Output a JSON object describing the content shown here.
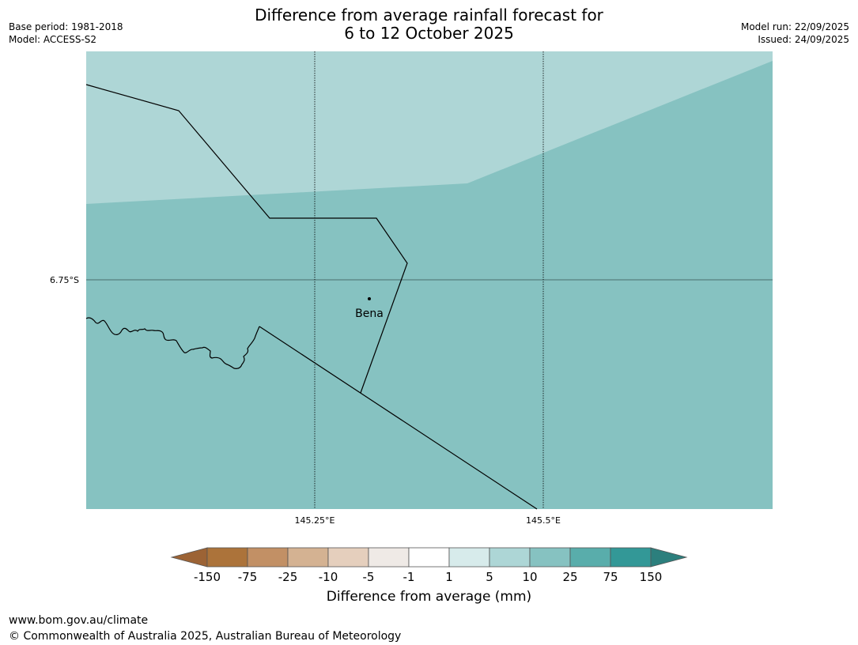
{
  "title": {
    "line1": "Difference from average rainfall forecast for",
    "line2": "6 to 12 October 2025"
  },
  "meta": {
    "base_period": "Base period: 1981-2018",
    "model": "Model: ACCESS-S2",
    "model_run": "Model run: 22/09/2025",
    "issued": "Issued: 24/09/2025"
  },
  "map": {
    "latitude_label": "6.75°S",
    "longitude_labels": [
      "145.25°E",
      "145.5°E"
    ],
    "place": {
      "name": "Bena"
    },
    "colors": {
      "light_zone": "#aed6d6",
      "main_zone": "#86c2c1",
      "grid": "#000000",
      "boundary": "#000000"
    }
  },
  "colorbar": {
    "title": "Difference from average (mm)",
    "tick_labels": [
      "-150",
      "-75",
      "-25",
      "-10",
      "-5",
      "-1",
      "1",
      "5",
      "10",
      "25",
      "75",
      "150"
    ],
    "colors": [
      "#ac733a",
      "#c29065",
      "#d4b292",
      "#e5cfbd",
      "#efeae6",
      "#ffffff",
      "#d7ebeb",
      "#add6d6",
      "#86c2c1",
      "#59adab",
      "#339897"
    ],
    "extend_low_color": "#9c6335",
    "extend_high_color": "#2c7f7d"
  },
  "footer": {
    "url": "www.bom.gov.au/climate",
    "copyright": "© Commonwealth of Australia 2025, Australian Bureau of Meteorology"
  }
}
